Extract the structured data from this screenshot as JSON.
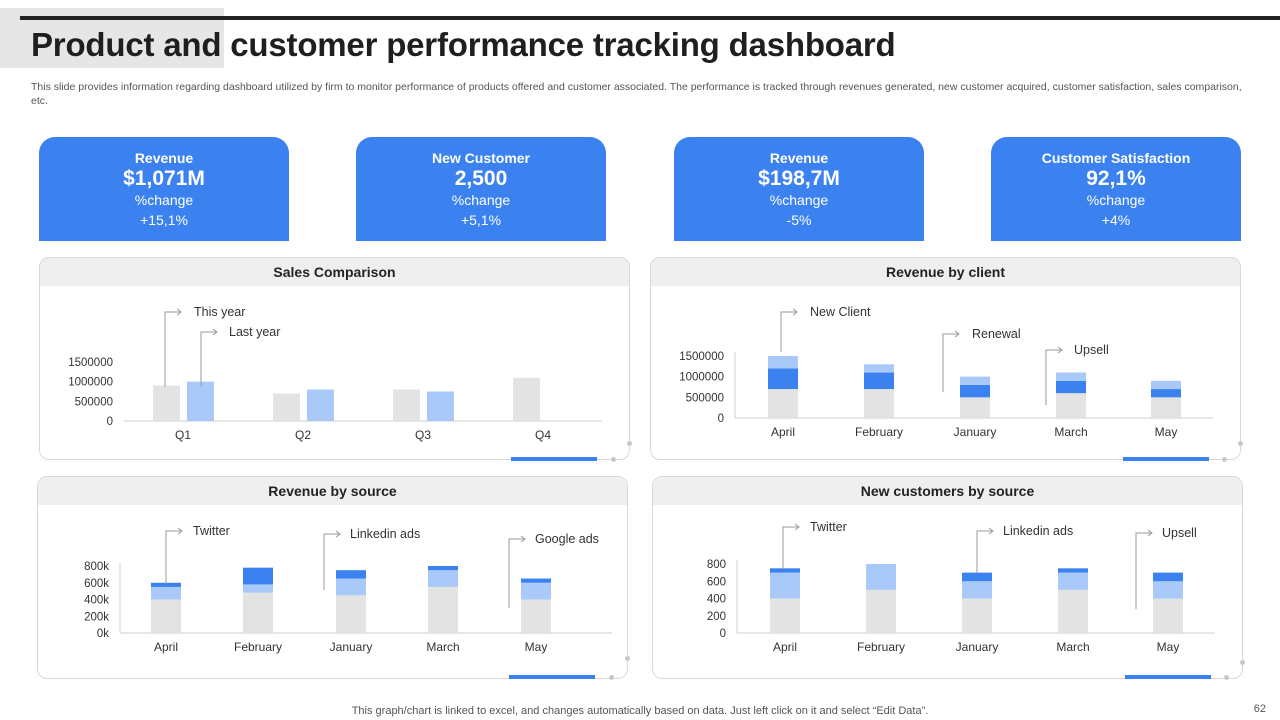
{
  "title": "Product and customer performance tracking dashboard",
  "description": "This slide provides information regarding dashboard utilized by firm to  monitor performance of products offered and customer associated. The performance is tracked through revenues generated, new customer acquired, customer satisfaction, sales comparison, etc.",
  "kpis": [
    {
      "label": "Revenue",
      "value": "$1,071M",
      "sub": "%change",
      "change": "+15,1%"
    },
    {
      "label": "New Customer",
      "value": "2,500",
      "sub": "%change",
      "change": "+5,1%"
    },
    {
      "label": "Revenue",
      "value": "$198,7M",
      "sub": "%change",
      "change": "-5%"
    },
    {
      "label": "Customer Satisfaction",
      "value": "92,1%",
      "sub": "%change",
      "change": "+4%"
    }
  ],
  "colors": {
    "accent": "#3b82f0",
    "light_blue": "#a9caf8",
    "grey_bar": "#e3e3e3",
    "axis": "#cfcfcf",
    "callout": "#9a9a9a"
  },
  "panels": {
    "sales": {
      "title": "Sales Comparison"
    },
    "client": {
      "title": "Revenue by client"
    },
    "source": {
      "title": "Revenue by source"
    },
    "customers": {
      "title": "New customers by source"
    }
  },
  "chart_data": [
    {
      "type": "bar",
      "title": "Sales Comparison",
      "categories": [
        "Q1",
        "Q2",
        "Q3",
        "Q4"
      ],
      "series": [
        {
          "name": "Last year",
          "values": [
            900000,
            700000,
            800000,
            1100000
          ]
        },
        {
          "name": "This year",
          "values": [
            1000000,
            800000,
            750000,
            null
          ]
        }
      ],
      "yticks": [
        "0",
        "500000",
        "1000000",
        "1500000"
      ],
      "ylim": [
        0,
        1500000
      ]
    },
    {
      "type": "bar",
      "title": "Revenue by client",
      "stacked": true,
      "categories": [
        "April",
        "February",
        "January",
        "March",
        "May"
      ],
      "series": [
        {
          "name": "",
          "values": [
            700000,
            700000,
            500000,
            600000,
            500000
          ]
        },
        {
          "name": "",
          "values": [
            500000,
            400000,
            300000,
            300000,
            200000
          ]
        },
        {
          "name": "",
          "values": [
            300000,
            200000,
            200000,
            200000,
            200000
          ]
        }
      ],
      "annotations": [
        "New Client",
        "Renewal",
        "Upsell"
      ],
      "yticks": [
        "0",
        "500000",
        "1000000",
        "1500000"
      ],
      "ylim": [
        0,
        1500000
      ]
    },
    {
      "type": "bar",
      "title": "Revenue by source",
      "stacked": true,
      "categories": [
        "April",
        "February",
        "January",
        "March",
        "May"
      ],
      "series": [
        {
          "name": "",
          "values": [
            400,
            480,
            450,
            550,
            400
          ]
        },
        {
          "name": "",
          "values": [
            150,
            100,
            200,
            200,
            200
          ]
        },
        {
          "name": "",
          "values": [
            50,
            200,
            100,
            50,
            50
          ]
        }
      ],
      "annotations": [
        "Twitter",
        "Linkedin ads",
        "Google ads"
      ],
      "yticks": [
        "0k",
        "200k",
        "400k",
        "600k",
        "800k"
      ],
      "ylim": [
        0,
        800
      ]
    },
    {
      "type": "bar",
      "title": "New customers by source",
      "stacked": true,
      "categories": [
        "April",
        "February",
        "January",
        "March",
        "May"
      ],
      "series": [
        {
          "name": "",
          "values": [
            400,
            500,
            400,
            500,
            400
          ]
        },
        {
          "name": "",
          "values": [
            300,
            300,
            200,
            200,
            200
          ]
        },
        {
          "name": "",
          "values": [
            50,
            0,
            100,
            50,
            100
          ]
        }
      ],
      "annotations": [
        "Twitter",
        "Linkedin ads",
        "Upsell"
      ],
      "yticks": [
        "0",
        "200",
        "400",
        "600",
        "800"
      ],
      "ylim": [
        0,
        800
      ]
    }
  ],
  "footer": {
    "note": "This graph/chart is linked to excel, and changes automatically based on data. Just left click on it and select “Edit Data”.",
    "page": "62"
  }
}
